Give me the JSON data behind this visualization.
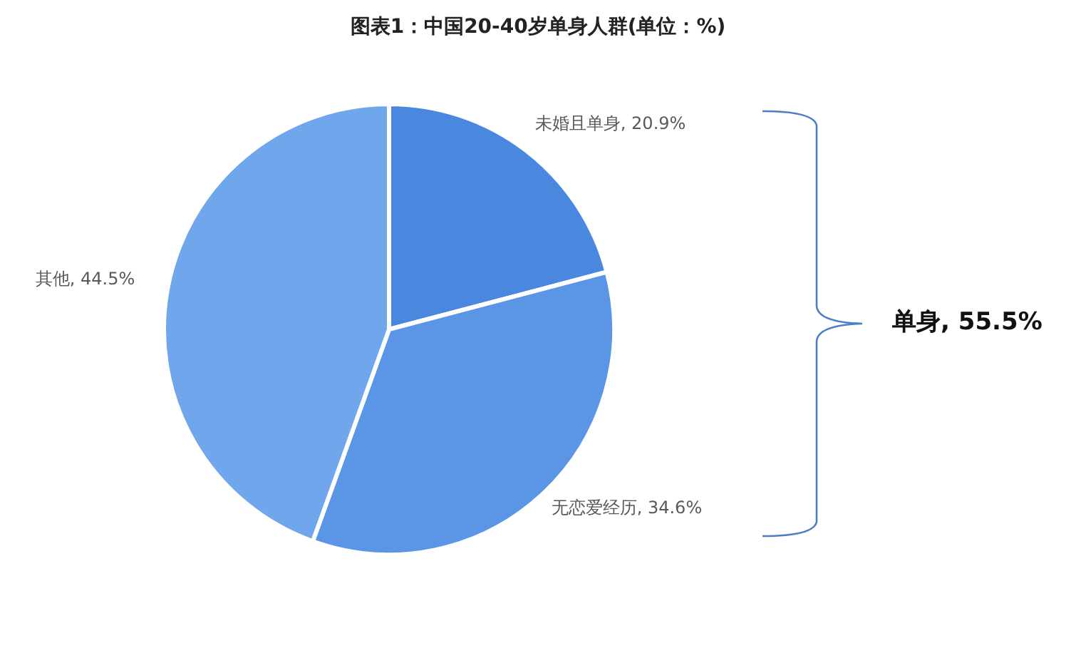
{
  "chart_data": {
    "type": "pie",
    "title": "图表1：中国20-40岁单身人群(单位：%)",
    "categories": [
      "未婚且单身",
      "无恋爱经历",
      "其他"
    ],
    "values": [
      20.9,
      34.6,
      44.5
    ],
    "value_labels": [
      "20.9%",
      "34.6%",
      "44.5%"
    ],
    "colors": [
      "#4a88e0",
      "#5b95e6",
      "#70a6ec"
    ],
    "annotations": [
      "单身, 55.5%"
    ]
  }
}
